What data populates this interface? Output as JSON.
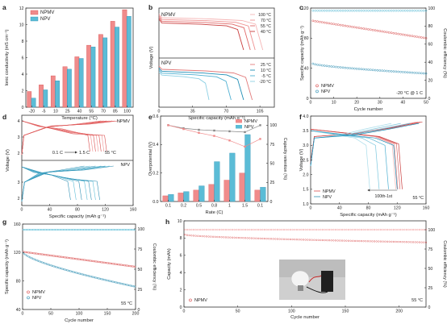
{
  "panels": {
    "a": "a",
    "b": "b",
    "c": "c",
    "d": "d",
    "e": "e",
    "f": "f",
    "g": "g",
    "h": "h"
  },
  "colors": {
    "npmv": "#f08b8b",
    "npv": "#5bbcd6",
    "npmv_dark": "#d94c4c",
    "npv_dark": "#2e8fb3",
    "grey": "#888888"
  },
  "chart_data": [
    {
      "panel": "a",
      "type": "bar",
      "xlabel": "Temperature (°C)",
      "ylabel": "Ionic conductivity (mS cm⁻¹)",
      "categories": [
        "-20",
        "-5",
        "10",
        "25",
        "40",
        "55",
        "70",
        "85",
        "100"
      ],
      "ylim": [
        0,
        12
      ],
      "yticks": [
        "0",
        "2",
        "4",
        "6",
        "8",
        "10",
        "12"
      ],
      "series": [
        {
          "name": "NPMV",
          "values": [
            1.9,
            2.7,
            3.8,
            4.9,
            6.1,
            7.5,
            8.8,
            10.4,
            11.8
          ]
        },
        {
          "name": "NPV",
          "values": [
            1.1,
            2.1,
            3.2,
            4.6,
            5.9,
            7.3,
            8.4,
            9.7,
            11.0
          ]
        }
      ],
      "legend": "top-left"
    },
    {
      "panel": "b",
      "type": "line",
      "xlabel": "Specific capacity (mAh g⁻¹)",
      "ylabel": "Voltage (V)",
      "xticks": [
        "0",
        "35",
        "70",
        "105"
      ],
      "xlim": [
        0,
        120
      ],
      "series": [
        {
          "name": "NPMV",
          "labels": [
            "100 °C",
            "70 °C",
            "55 °C",
            "40 °C"
          ],
          "ends": [
            108,
            100,
            95,
            88
          ]
        },
        {
          "name": "NPV",
          "labels": [
            "25 °C",
            "10 °C",
            "-5 °C",
            "-20 °C"
          ],
          "ends": [
            97,
            88,
            75,
            52
          ]
        }
      ]
    },
    {
      "panel": "c",
      "type": "scatter",
      "xlabel": "Cycle number",
      "ylabel": "Specific capacity (mAh g⁻¹)",
      "ylabel2": "Coulombic efficiency (%)",
      "xticks": [
        "0",
        "10",
        "20",
        "30",
        "40",
        "50"
      ],
      "yticks": [
        "0",
        "40",
        "80",
        "120"
      ],
      "yticks2": [
        "0",
        "20",
        "40",
        "60",
        "80",
        "100"
      ],
      "xlim": [
        0,
        50
      ],
      "ylim": [
        0,
        120
      ],
      "note": "-20 °C @ 1 C",
      "series": [
        {
          "name": "NPMV",
          "start": 103,
          "end": 80
        },
        {
          "name": "NPV",
          "start": 46,
          "end": 33
        }
      ],
      "ce": 98
    },
    {
      "panel": "d",
      "type": "line",
      "xlabel": "Specific capacity (mAh g⁻¹)",
      "ylabel": "Voltage (V)",
      "xticks": [
        "0",
        "40",
        "80",
        "120",
        "160"
      ],
      "xlim": [
        0,
        160
      ],
      "labels": [
        "NPMV",
        "NPV",
        "0.1 C",
        "1.5 C",
        "55 °C"
      ]
    },
    {
      "panel": "e",
      "type": "bar",
      "xlabel": "Rate (C)",
      "ylabel": "Overpotential (V)",
      "ylabel2": "Capacity retention (%)",
      "categories": [
        "0.1",
        "0.2",
        "0.5",
        "0.8",
        "1",
        "1.5",
        "0.1"
      ],
      "ylim": [
        0,
        0.6
      ],
      "yticks": [
        "0.0",
        "0.2",
        "0.4",
        "0.6"
      ],
      "yticks2": [
        "0",
        "25",
        "50",
        "75",
        "100"
      ],
      "series": [
        {
          "name": "NPMV",
          "values": [
            0.04,
            0.06,
            0.08,
            0.12,
            0.15,
            0.2,
            0.08
          ]
        },
        {
          "name": "NPV",
          "values": [
            0.05,
            0.07,
            0.11,
            0.28,
            0.34,
            0.47,
            0.1
          ]
        }
      ],
      "retention": [
        {
          "name": "NPMV",
          "values": [
            100,
            96,
            94,
            93,
            92,
            91,
            100
          ]
        },
        {
          "name": "NPV",
          "values": [
            100,
            95,
            90,
            86,
            80,
            72,
            82
          ]
        }
      ],
      "legend": "top-right"
    },
    {
      "panel": "f",
      "type": "line",
      "xlabel": "Specific capacity (mAh g⁻¹)",
      "ylabel": "Voltage (V)",
      "xticks": [
        "0",
        "40",
        "80",
        "120",
        "160"
      ],
      "yticks": [
        "1.0",
        "1.5",
        "2.0",
        "2.5",
        "3.0",
        "3.5",
        "4.0"
      ],
      "xlim": [
        0,
        160
      ],
      "ylim": [
        1.0,
        4.0
      ],
      "labels": [
        "NPMV",
        "NPV",
        "100th-1st",
        "55 °C"
      ]
    },
    {
      "panel": "g",
      "type": "scatter",
      "xlabel": "Cycle number",
      "ylabel": "Specific capacity (mAh g⁻¹)",
      "ylabel2": "Coulombic efficiency (%)",
      "xticks": [
        "0",
        "50",
        "100",
        "150",
        "200"
      ],
      "yticks": [
        "40",
        "80",
        "120",
        "160"
      ],
      "yticks2": [
        "0",
        "25",
        "50",
        "75",
        "100"
      ],
      "xlim": [
        0,
        200
      ],
      "ylim": [
        40,
        160
      ],
      "note": "55 °C",
      "series": [
        {
          "name": "NPMV",
          "start": 121,
          "end": 100
        },
        {
          "name": "NPV",
          "start": 120,
          "end": 72
        }
      ],
      "ce": 99
    },
    {
      "panel": "h",
      "type": "scatter",
      "xlabel": "Cycle number",
      "ylabel": "Capacity (mAh)",
      "ylabel2": "Coulombic efficiency (%)",
      "xticks": [
        "0",
        "50",
        "100",
        "150",
        "200"
      ],
      "yticks": [
        "0",
        "2",
        "4",
        "6",
        "8",
        "10"
      ],
      "yticks2": [
        "0",
        "25",
        "50",
        "75",
        "100"
      ],
      "xlim": [
        0,
        225
      ],
      "ylim": [
        0,
        10
      ],
      "note": "55 °C",
      "series": [
        {
          "name": "NPMV",
          "start": 8.4,
          "end": 7.5
        }
      ],
      "ce": 97
    }
  ]
}
